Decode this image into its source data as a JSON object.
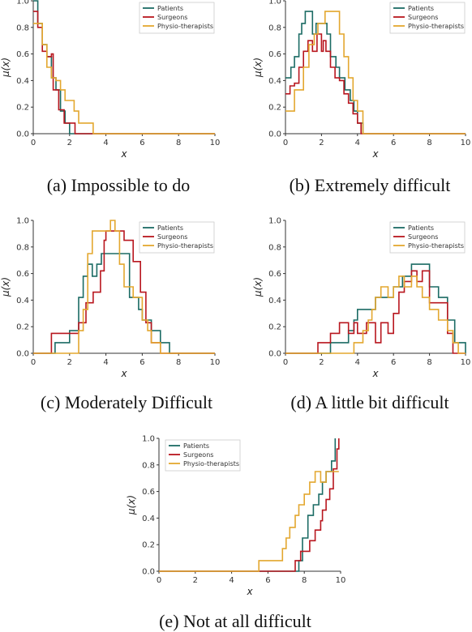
{
  "colors": {
    "Patients": "#1b6b64",
    "Surgeons": "#b8161e",
    "Physio-therapists": "#e3a72f"
  },
  "chart_data": [
    {
      "type": "line",
      "caption": "(a) Impossible to do",
      "xlabel": "x",
      "ylabel": "μ(x)",
      "xlim": [
        0,
        10
      ],
      "ylim": [
        0,
        1
      ],
      "xticks": [
        "0",
        "2",
        "4",
        "6",
        "8",
        "10"
      ],
      "yticks": [
        "0.0",
        "0.2",
        "0.4",
        "0.6",
        "0.8",
        "1.0"
      ],
      "legend": "top-right",
      "series": [
        {
          "name": "Patients",
          "points": [
            [
              0,
              1.0
            ],
            [
              0.25,
              0.83
            ],
            [
              0.5,
              0.67
            ],
            [
              0.75,
              0.58
            ],
            [
              1.0,
              0.42
            ],
            [
              1.25,
              0.33
            ],
            [
              1.5,
              0.17
            ],
            [
              1.75,
              0.08
            ],
            [
              2.0,
              0.0
            ],
            [
              10,
              0.0
            ]
          ]
        },
        {
          "name": "Surgeons",
          "points": [
            [
              0,
              0.92
            ],
            [
              0.25,
              0.8
            ],
            [
              0.5,
              0.62
            ],
            [
              0.75,
              0.58
            ],
            [
              1.0,
              0.6
            ],
            [
              1.1,
              0.33
            ],
            [
              1.4,
              0.18
            ],
            [
              1.7,
              0.08
            ],
            [
              2.3,
              0.0
            ],
            [
              10,
              0.0
            ]
          ]
        },
        {
          "name": "Physio-therapists",
          "points": [
            [
              0,
              0.83
            ],
            [
              0.2,
              0.83
            ],
            [
              0.5,
              0.67
            ],
            [
              0.75,
              0.5
            ],
            [
              1.0,
              0.42
            ],
            [
              1.25,
              0.4
            ],
            [
              1.5,
              0.33
            ],
            [
              1.75,
              0.25
            ],
            [
              2.25,
              0.17
            ],
            [
              2.5,
              0.08
            ],
            [
              3.3,
              0.0
            ],
            [
              10,
              0.0
            ]
          ]
        }
      ]
    },
    {
      "type": "line",
      "caption": "(b) Extremely difficult",
      "xlabel": "x",
      "ylabel": "μ(x)",
      "xlim": [
        0,
        10
      ],
      "ylim": [
        0,
        1
      ],
      "xticks": [
        "0",
        "2",
        "4",
        "6",
        "8",
        "10"
      ],
      "yticks": [
        "0.0",
        "0.2",
        "0.4",
        "0.6",
        "0.8",
        "1.0"
      ],
      "legend": "top-right",
      "series": [
        {
          "name": "Patients",
          "points": [
            [
              0,
              0.42
            ],
            [
              0.3,
              0.5
            ],
            [
              0.5,
              0.58
            ],
            [
              0.75,
              0.75
            ],
            [
              0.9,
              0.83
            ],
            [
              1.1,
              0.92
            ],
            [
              1.5,
              0.75
            ],
            [
              1.7,
              0.83
            ],
            [
              2.0,
              0.83
            ],
            [
              2.3,
              0.75
            ],
            [
              2.5,
              0.58
            ],
            [
              2.8,
              0.5
            ],
            [
              3.0,
              0.42
            ],
            [
              3.3,
              0.33
            ],
            [
              3.6,
              0.25
            ],
            [
              3.8,
              0.17
            ],
            [
              4.0,
              0.08
            ],
            [
              4.3,
              0.0
            ],
            [
              10,
              0.0
            ]
          ]
        },
        {
          "name": "Surgeons",
          "points": [
            [
              0,
              0.3
            ],
            [
              0.25,
              0.36
            ],
            [
              0.5,
              0.38
            ],
            [
              0.75,
              0.5
            ],
            [
              1.0,
              0.62
            ],
            [
              1.25,
              0.7
            ],
            [
              1.5,
              0.62
            ],
            [
              1.75,
              0.75
            ],
            [
              2.0,
              0.62
            ],
            [
              2.1,
              0.7
            ],
            [
              2.25,
              0.62
            ],
            [
              2.5,
              0.5
            ],
            [
              2.75,
              0.42
            ],
            [
              3.0,
              0.4
            ],
            [
              3.25,
              0.3
            ],
            [
              3.5,
              0.23
            ],
            [
              3.75,
              0.15
            ],
            [
              4.0,
              0.08
            ],
            [
              4.2,
              0.0
            ],
            [
              10,
              0.0
            ]
          ]
        },
        {
          "name": "Physio-therapists",
          "points": [
            [
              0,
              0.17
            ],
            [
              0.5,
              0.33
            ],
            [
              1.0,
              0.5
            ],
            [
              1.3,
              0.67
            ],
            [
              1.6,
              0.75
            ],
            [
              1.8,
              0.83
            ],
            [
              2.2,
              0.92
            ],
            [
              2.8,
              0.92
            ],
            [
              3.0,
              0.75
            ],
            [
              3.25,
              0.58
            ],
            [
              3.5,
              0.42
            ],
            [
              3.75,
              0.25
            ],
            [
              4.0,
              0.17
            ],
            [
              4.3,
              0.0
            ],
            [
              10,
              0.0
            ]
          ]
        }
      ]
    },
    {
      "type": "line",
      "caption": "(c) Moderately Difficult",
      "xlabel": "x",
      "ylabel": "μ(x)",
      "xlim": [
        0,
        10
      ],
      "ylim": [
        0,
        1
      ],
      "xticks": [
        "0",
        "2",
        "4",
        "6",
        "8",
        "10"
      ],
      "yticks": [
        "0.0",
        "0.2",
        "0.4",
        "0.6",
        "0.8",
        "1.0"
      ],
      "legend": "top-right",
      "series": [
        {
          "name": "Patients",
          "points": [
            [
              0,
              0.0
            ],
            [
              1.0,
              0.0
            ],
            [
              1.2,
              0.08
            ],
            [
              2.0,
              0.17
            ],
            [
              2.5,
              0.42
            ],
            [
              2.75,
              0.58
            ],
            [
              3.0,
              0.67
            ],
            [
              3.25,
              0.58
            ],
            [
              3.5,
              0.67
            ],
            [
              3.75,
              0.75
            ],
            [
              5.0,
              0.75
            ],
            [
              5.3,
              0.42
            ],
            [
              5.8,
              0.33
            ],
            [
              6.0,
              0.25
            ],
            [
              6.5,
              0.17
            ],
            [
              7.0,
              0.08
            ],
            [
              7.5,
              0.0
            ],
            [
              10,
              0.0
            ]
          ]
        },
        {
          "name": "Surgeons",
          "points": [
            [
              0,
              0.0
            ],
            [
              0.8,
              0.0
            ],
            [
              1.0,
              0.15
            ],
            [
              2.0,
              0.15
            ],
            [
              2.5,
              0.23
            ],
            [
              2.9,
              0.38
            ],
            [
              3.3,
              0.46
            ],
            [
              3.7,
              0.62
            ],
            [
              3.9,
              0.85
            ],
            [
              4.0,
              0.92
            ],
            [
              4.8,
              0.92
            ],
            [
              5.0,
              0.85
            ],
            [
              5.5,
              0.69
            ],
            [
              5.9,
              0.46
            ],
            [
              6.2,
              0.23
            ],
            [
              6.5,
              0.08
            ],
            [
              7.0,
              0.0
            ],
            [
              10,
              0.0
            ]
          ]
        },
        {
          "name": "Physio-therapists",
          "points": [
            [
              0,
              0.0
            ],
            [
              2.2,
              0.0
            ],
            [
              2.5,
              0.17
            ],
            [
              2.75,
              0.33
            ],
            [
              3.0,
              0.75
            ],
            [
              3.25,
              0.92
            ],
            [
              4.0,
              0.92
            ],
            [
              4.25,
              1.0
            ],
            [
              4.5,
              0.92
            ],
            [
              4.75,
              0.67
            ],
            [
              5.0,
              0.5
            ],
            [
              5.5,
              0.42
            ],
            [
              6.0,
              0.25
            ],
            [
              6.3,
              0.17
            ],
            [
              6.5,
              0.08
            ],
            [
              7.0,
              0.0
            ],
            [
              10,
              0.0
            ]
          ]
        }
      ]
    },
    {
      "type": "line",
      "caption": "(d) A little bit difficult",
      "xlabel": "x",
      "ylabel": "μ(x)",
      "xlim": [
        0,
        10
      ],
      "ylim": [
        0,
        1
      ],
      "xticks": [
        "0",
        "2",
        "4",
        "6",
        "8",
        "10"
      ],
      "yticks": [
        "0.0",
        "0.2",
        "0.4",
        "0.6",
        "0.8",
        "1.0"
      ],
      "legend": "top-right",
      "series": [
        {
          "name": "Patients",
          "points": [
            [
              0,
              0.0
            ],
            [
              2.3,
              0.0
            ],
            [
              2.5,
              0.08
            ],
            [
              3.5,
              0.17
            ],
            [
              3.8,
              0.25
            ],
            [
              4.0,
              0.33
            ],
            [
              5.0,
              0.42
            ],
            [
              5.5,
              0.42
            ],
            [
              6.0,
              0.5
            ],
            [
              6.5,
              0.58
            ],
            [
              7.0,
              0.67
            ],
            [
              7.8,
              0.67
            ],
            [
              8.0,
              0.5
            ],
            [
              8.5,
              0.42
            ],
            [
              9.0,
              0.25
            ],
            [
              9.4,
              0.08
            ],
            [
              9.8,
              0.08
            ],
            [
              10,
              0.0
            ]
          ]
        },
        {
          "name": "Surgeons",
          "points": [
            [
              0,
              0.0
            ],
            [
              1.5,
              0.0
            ],
            [
              1.8,
              0.08
            ],
            [
              2.5,
              0.15
            ],
            [
              3.0,
              0.23
            ],
            [
              3.5,
              0.15
            ],
            [
              3.8,
              0.23
            ],
            [
              4.0,
              0.15
            ],
            [
              4.5,
              0.23
            ],
            [
              5.0,
              0.08
            ],
            [
              5.3,
              0.23
            ],
            [
              5.7,
              0.15
            ],
            [
              6.0,
              0.3
            ],
            [
              6.3,
              0.46
            ],
            [
              6.6,
              0.54
            ],
            [
              7.0,
              0.62
            ],
            [
              7.3,
              0.54
            ],
            [
              7.6,
              0.62
            ],
            [
              8.0,
              0.38
            ],
            [
              8.5,
              0.38
            ],
            [
              9.0,
              0.15
            ],
            [
              9.3,
              0.0
            ],
            [
              10,
              0.0
            ]
          ]
        },
        {
          "name": "Physio-therapists",
          "points": [
            [
              0,
              0.0
            ],
            [
              3.5,
              0.0
            ],
            [
              3.8,
              0.08
            ],
            [
              4.3,
              0.17
            ],
            [
              4.6,
              0.25
            ],
            [
              4.8,
              0.33
            ],
            [
              5.0,
              0.42
            ],
            [
              5.3,
              0.5
            ],
            [
              5.7,
              0.42
            ],
            [
              6.0,
              0.5
            ],
            [
              6.3,
              0.58
            ],
            [
              6.6,
              0.5
            ],
            [
              7.0,
              0.58
            ],
            [
              7.3,
              0.5
            ],
            [
              7.6,
              0.42
            ],
            [
              8.0,
              0.33
            ],
            [
              8.5,
              0.25
            ],
            [
              9.0,
              0.17
            ],
            [
              9.3,
              0.08
            ],
            [
              9.6,
              0.0
            ],
            [
              10,
              0.0
            ]
          ]
        }
      ]
    },
    {
      "type": "line",
      "caption": "(e) Not at all difficult",
      "xlabel": "x",
      "ylabel": "μ(x)",
      "xlim": [
        0,
        10
      ],
      "ylim": [
        0,
        1
      ],
      "xticks": [
        "0",
        "2",
        "4",
        "6",
        "8",
        "10"
      ],
      "yticks": [
        "0.0",
        "0.2",
        "0.4",
        "0.6",
        "0.8",
        "1.0"
      ],
      "legend": "top-left",
      "series": [
        {
          "name": "Patients",
          "points": [
            [
              0,
              0.0
            ],
            [
              7.5,
              0.0
            ],
            [
              7.7,
              0.08
            ],
            [
              7.9,
              0.25
            ],
            [
              8.2,
              0.42
            ],
            [
              8.5,
              0.5
            ],
            [
              8.8,
              0.58
            ],
            [
              9.0,
              0.67
            ],
            [
              9.2,
              0.75
            ],
            [
              9.5,
              0.83
            ],
            [
              9.7,
              1.0
            ]
          ]
        },
        {
          "name": "Surgeons",
          "points": [
            [
              0,
              0.0
            ],
            [
              7.3,
              0.0
            ],
            [
              7.5,
              0.08
            ],
            [
              7.8,
              0.15
            ],
            [
              8.3,
              0.23
            ],
            [
              8.6,
              0.31
            ],
            [
              8.9,
              0.38
            ],
            [
              9.0,
              0.46
            ],
            [
              9.2,
              0.54
            ],
            [
              9.4,
              0.62
            ],
            [
              9.6,
              0.77
            ],
            [
              9.8,
              0.92
            ],
            [
              9.9,
              1.0
            ]
          ]
        },
        {
          "name": "Physio-therapists",
          "points": [
            [
              0,
              0.0
            ],
            [
              5.4,
              0.0
            ],
            [
              5.5,
              0.08
            ],
            [
              6.5,
              0.08
            ],
            [
              6.8,
              0.17
            ],
            [
              7.0,
              0.25
            ],
            [
              7.2,
              0.33
            ],
            [
              7.5,
              0.42
            ],
            [
              7.7,
              0.5
            ],
            [
              8.0,
              0.58
            ],
            [
              8.3,
              0.67
            ],
            [
              8.6,
              0.75
            ],
            [
              8.9,
              0.67
            ],
            [
              9.2,
              0.75
            ],
            [
              9.9,
              0.75
            ]
          ]
        }
      ]
    }
  ]
}
